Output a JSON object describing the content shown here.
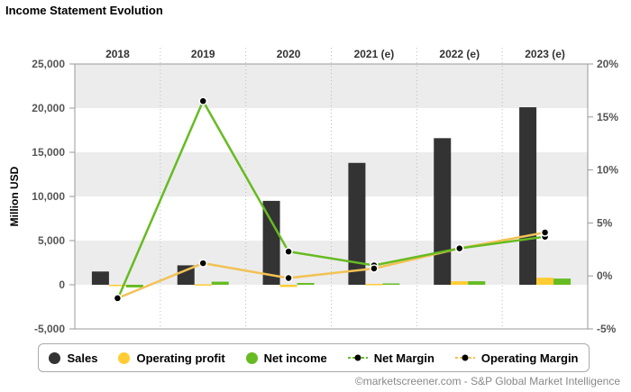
{
  "title": "Income Statement Evolution",
  "credit": "©marketscreener.com - S&P Global Market Intelligence",
  "colors": {
    "sales": "#333333",
    "operating_profit": "#ffcc33",
    "net_income": "#66bb22",
    "net_margin": "#66bb22",
    "operating_margin": "#f2c255",
    "band": "#ececec"
  },
  "chart_data": {
    "type": "bar",
    "categories": [
      "2018",
      "2019",
      "2020",
      "2021 (e)",
      "2022 (e)",
      "2023 (e)"
    ],
    "ylabel": "Million USD",
    "ylim": [
      -5000,
      25000
    ],
    "yticks": [
      "-5,000",
      "0",
      "5,000",
      "10,000",
      "15,000",
      "20,000",
      "25,000"
    ],
    "y2lim": [
      -5,
      20
    ],
    "y2ticks": [
      "-5%",
      "0%",
      "5%",
      "10%",
      "15%",
      "20%"
    ],
    "legend_position": "bottom",
    "series": [
      {
        "name": "Sales",
        "type": "bar",
        "values": [
          1500,
          2200,
          9500,
          13800,
          16600,
          20100
        ]
      },
      {
        "name": "Operating profit",
        "type": "bar",
        "values": [
          -100,
          50,
          -250,
          100,
          400,
          800
        ]
      },
      {
        "name": "Net income",
        "type": "bar",
        "values": [
          -300,
          350,
          200,
          150,
          400,
          700
        ]
      },
      {
        "name": "Net Margin",
        "type": "line",
        "axis": "right",
        "values": [
          -2.2,
          16.5,
          2.3,
          1.0,
          2.6,
          3.7
        ]
      },
      {
        "name": "Operating Margin",
        "type": "line",
        "axis": "right",
        "values": [
          -2.1,
          1.2,
          -0.2,
          0.7,
          2.6,
          4.1
        ]
      }
    ]
  }
}
